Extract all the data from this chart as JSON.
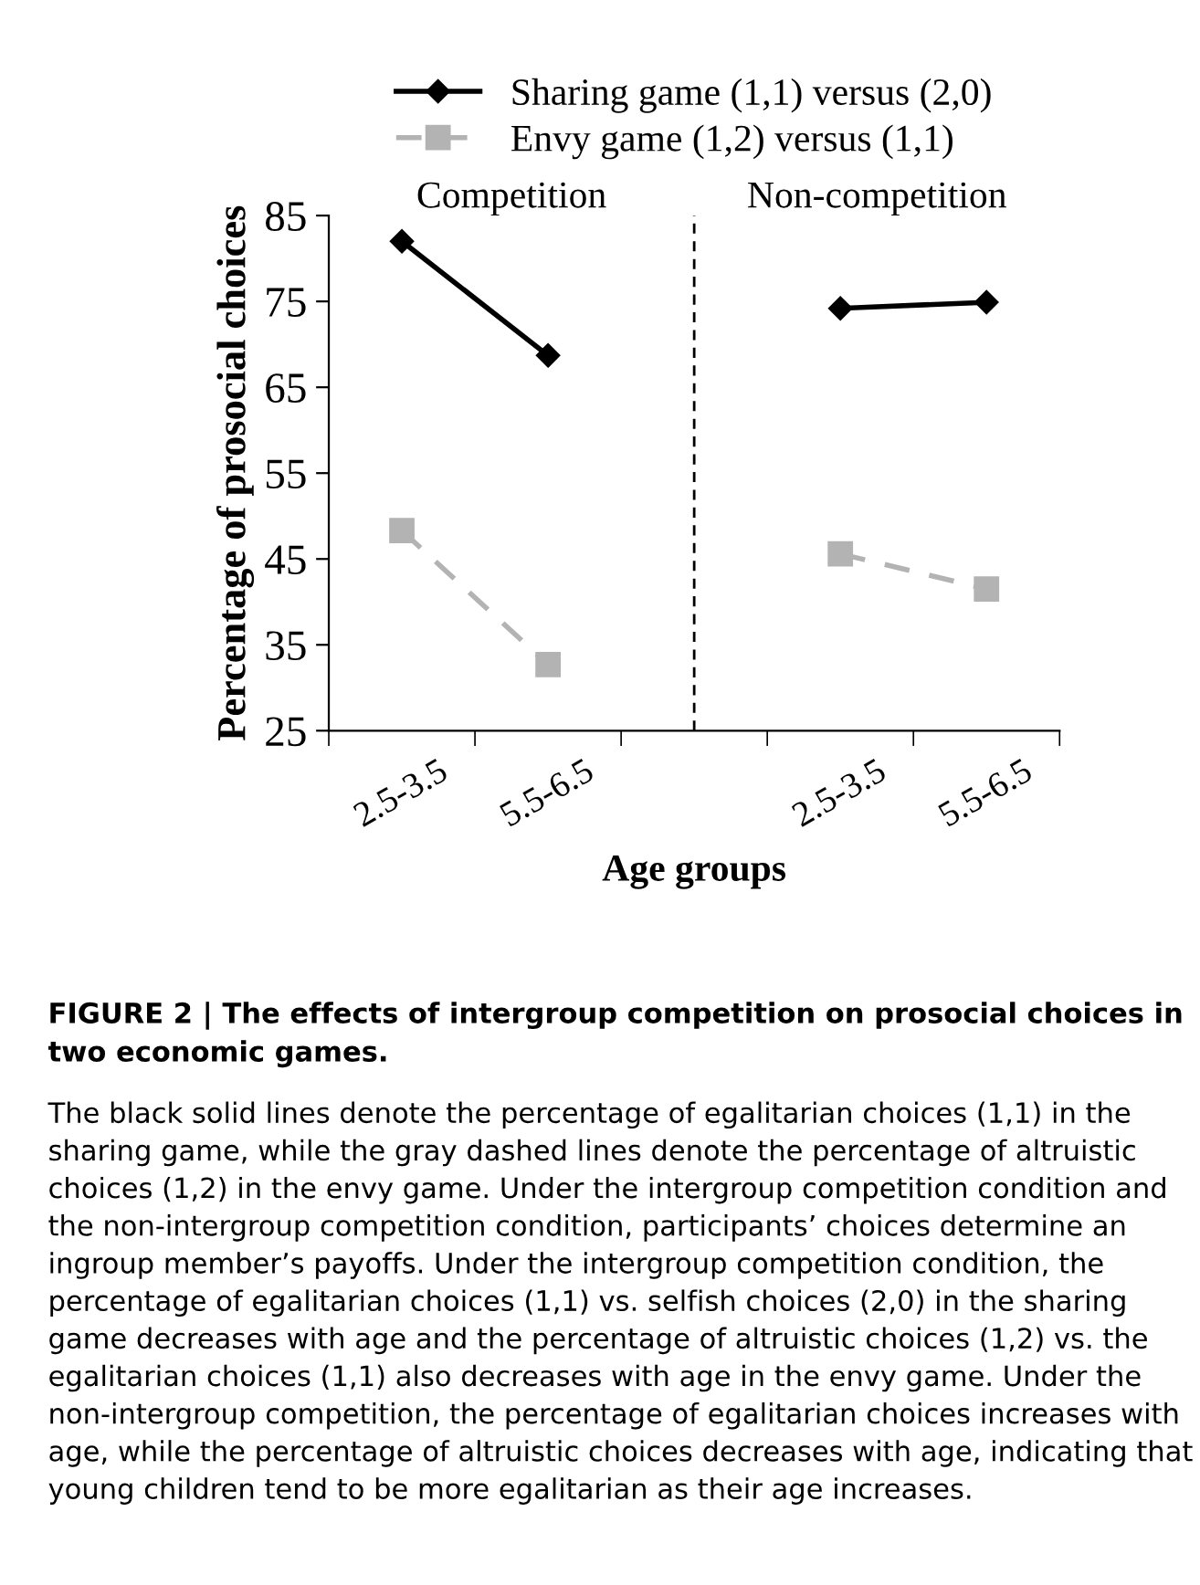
{
  "chart_data": {
    "type": "line",
    "categories": [
      "2.5-3.5",
      "5.5-6.5",
      null,
      "2.5-3.5",
      "5.5-6.5"
    ],
    "ylim": [
      25,
      85
    ],
    "yticks": [
      25,
      35,
      45,
      55,
      65,
      75,
      85
    ],
    "xlabel": "Age groups",
    "ylabel": "Percentage of prosocial choices",
    "series": [
      {
        "name": "Sharing game (1,1) versus (2,0)",
        "color": "#000000",
        "marker": "diamond",
        "line_style": "solid",
        "values": [
          82.0,
          68.7,
          null,
          74.2,
          74.9
        ]
      },
      {
        "name": "Envy game (1,2) versus (1,1)",
        "color": "#b3b3b3",
        "marker": "square",
        "line_style": "dashed",
        "values": [
          48.3,
          32.7,
          null,
          45.6,
          41.5
        ]
      }
    ],
    "annotations": [
      "Competition",
      "Non-competition",
      "FIGURE 2 | The effects of intergroup competition on prosocial choices in two economic games.",
      "The black solid lines denote the percentage of egalitarian choices (1,1) in the sharing game, while the gray dashed lines denote the percentage of altruistic choices (1,2) in the envy game. Under the intergroup competition condition and the non-intergroup competition condition, participants’ choices determine an ingroup member’s payoffs. Under the intergroup competition condition, the percentage of egalitarian choices (1,1) vs. selfish choices (2,0) in the sharing game decreases with age and the percentage of altruistic choices (1,2) vs. the egalitarian choices (1,1) also decreases with age in the envy game. Under the non-intergroup competition, the percentage of egalitarian choices increases with age, while the percentage of altruistic choices decreases with age, indicating that young children tend to be more egalitarian as their age increases."
    ],
    "legend": "top"
  }
}
